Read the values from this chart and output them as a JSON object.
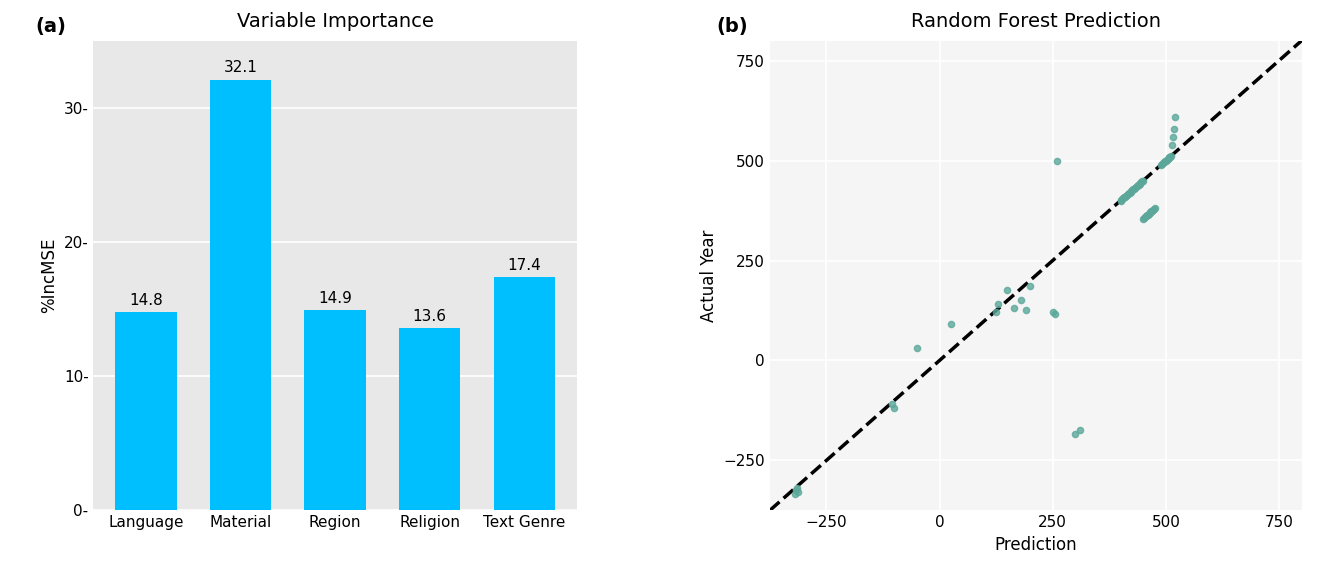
{
  "bar_categories": [
    "Language",
    "Material",
    "Region",
    "Religion",
    "Text Genre"
  ],
  "bar_values": [
    14.8,
    32.1,
    14.9,
    13.6,
    17.4
  ],
  "bar_color": "#00BFFF",
  "bar_title": "Variable Importance",
  "bar_ylabel": "%IncMSE",
  "bar_ylim": [
    0,
    35
  ],
  "bar_yticks": [
    0,
    10,
    20,
    30
  ],
  "scatter_title": "Random Forest Prediction",
  "scatter_xlabel": "Prediction",
  "scatter_ylabel": "Actual Year",
  "scatter_color": "#5BA89A",
  "scatter_bg": "#F5F5F5",
  "scatter_xlim": [
    -375,
    800
  ],
  "scatter_ylim": [
    -375,
    800
  ],
  "scatter_xticks": [
    -250,
    0,
    250,
    500,
    750
  ],
  "scatter_yticks": [
    -250,
    0,
    250,
    500,
    750
  ],
  "scatter_x": [
    -315,
    -318,
    -312,
    -320,
    -100,
    -105,
    -50,
    25,
    150,
    130,
    125,
    200,
    180,
    165,
    190,
    250,
    255,
    260,
    400,
    402,
    404,
    406,
    408,
    410,
    412,
    414,
    416,
    418,
    420,
    422,
    424,
    426,
    428,
    430,
    432,
    434,
    436,
    438,
    440,
    442,
    444,
    446,
    448,
    450,
    450,
    452,
    454,
    456,
    458,
    460,
    462,
    464,
    466,
    468,
    470,
    472,
    474,
    476,
    490,
    492,
    494,
    496,
    498,
    500,
    502,
    504,
    506,
    508,
    510,
    512,
    514,
    516,
    518,
    520,
    300,
    310
  ],
  "scatter_y": [
    -320,
    -325,
    -330,
    -335,
    -120,
    -110,
    30,
    90,
    175,
    140,
    120,
    185,
    150,
    130,
    125,
    120,
    115,
    500,
    400,
    402,
    404,
    406,
    408,
    410,
    412,
    414,
    416,
    418,
    420,
    422,
    424,
    426,
    428,
    430,
    432,
    434,
    436,
    438,
    440,
    442,
    444,
    446,
    448,
    450,
    355,
    357,
    359,
    361,
    363,
    365,
    367,
    369,
    371,
    373,
    375,
    377,
    379,
    381,
    490,
    492,
    494,
    496,
    498,
    500,
    502,
    504,
    506,
    508,
    510,
    512,
    540,
    560,
    580,
    610,
    -185,
    -175
  ],
  "label_a": "(a)",
  "label_b": "(b)"
}
